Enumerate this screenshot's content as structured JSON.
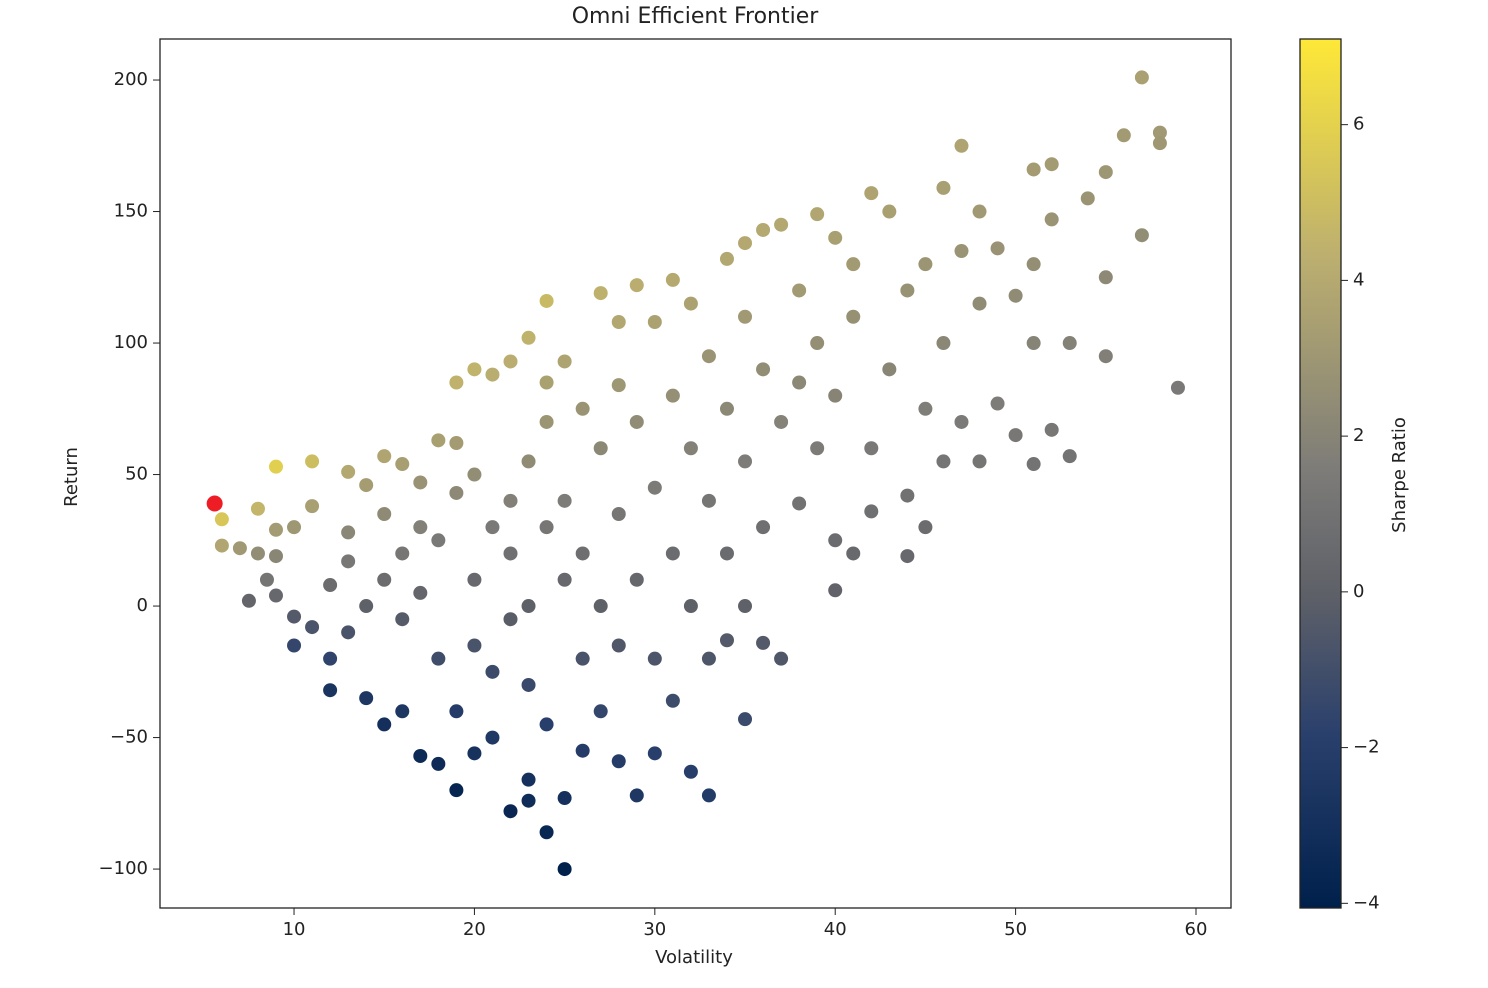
{
  "chart_data": {
    "type": "scatter",
    "title": "Omni Efficient Frontier",
    "x_label": "Volatility",
    "y_label": "Return",
    "colorbar_label": "Sharpe Ratio",
    "colormap": "cividis",
    "x": [
      6,
      6,
      7,
      8,
      9,
      11,
      11,
      9,
      10,
      8,
      9,
      7.5,
      8.5,
      9,
      10,
      10,
      11,
      12,
      12,
      12,
      13,
      13,
      13,
      13,
      14,
      14,
      14,
      15,
      15,
      15,
      15,
      16,
      16,
      16,
      16,
      17,
      17,
      17,
      17,
      18,
      18,
      18,
      18,
      19,
      19,
      19,
      19,
      19,
      20,
      20,
      20,
      20,
      20,
      21,
      21,
      21,
      21,
      22,
      22,
      22,
      22,
      22,
      23,
      23,
      23,
      23,
      23,
      23,
      24,
      24,
      24,
      24,
      24,
      24,
      25,
      25,
      25,
      25,
      25,
      26,
      26,
      26,
      26,
      27,
      27,
      27,
      27,
      28,
      28,
      28,
      28,
      28,
      29,
      29,
      29,
      29,
      30,
      30,
      30,
      30,
      31,
      31,
      31,
      31,
      32,
      32,
      32,
      32,
      33,
      33,
      33,
      33,
      34,
      34,
      34,
      34,
      35,
      35,
      35,
      35,
      35,
      36,
      36,
      36,
      36,
      37,
      37,
      37,
      38,
      38,
      38,
      39,
      39,
      39,
      40,
      40,
      40,
      40,
      41,
      41,
      41,
      42,
      42,
      42,
      43,
      43,
      44,
      44,
      44,
      45,
      45,
      45,
      46,
      46,
      46,
      47,
      47,
      47,
      48,
      48,
      48,
      49,
      49,
      50,
      50,
      51,
      51,
      51,
      51,
      52,
      52,
      52,
      53,
      53,
      54,
      55,
      55,
      55,
      56,
      57,
      57,
      58,
      58,
      59
    ],
    "y": [
      33,
      23,
      22,
      37,
      53,
      55,
      38,
      29,
      30,
      20,
      19,
      2,
      10,
      4,
      -4,
      -15,
      -8,
      8,
      -20,
      -32,
      17,
      -10,
      28,
      51,
      46,
      -35,
      0,
      57,
      -45,
      10,
      35,
      54,
      20,
      -40,
      -5,
      47,
      -57,
      30,
      5,
      63,
      -60,
      25,
      -20,
      62,
      -70,
      43,
      85,
      -40,
      90,
      50,
      -56,
      10,
      -15,
      88,
      30,
      -50,
      -25,
      93,
      -78,
      20,
      -5,
      40,
      102,
      -74,
      -66,
      55,
      0,
      -30,
      116,
      -86,
      85,
      70,
      30,
      -45,
      -100,
      -73,
      93,
      40,
      10,
      -55,
      75,
      -20,
      20,
      119,
      60,
      -40,
      0,
      -59,
      108,
      84,
      35,
      -15,
      122,
      -72,
      70,
      10,
      108,
      -56,
      45,
      -20,
      124,
      80,
      20,
      -36,
      115,
      -63,
      60,
      0,
      -72,
      95,
      40,
      -20,
      132,
      75,
      20,
      -13,
      138,
      -43,
      110,
      55,
      0,
      143,
      90,
      30,
      -14,
      145,
      70,
      -20,
      120,
      85,
      39,
      149,
      100,
      60,
      6,
      25,
      140,
      80,
      130,
      20,
      110,
      157,
      60,
      36,
      150,
      90,
      19,
      120,
      42,
      130,
      30,
      75,
      159,
      100,
      55,
      175,
      135,
      70,
      150,
      115,
      55,
      136,
      77,
      118,
      65,
      166,
      130,
      54,
      100,
      168,
      147,
      67,
      57,
      100,
      155,
      165,
      95,
      125,
      179,
      201,
      141,
      180,
      176,
      83
    ],
    "highlight": {
      "x": 5.6,
      "y": 39,
      "color": "#ee1c25"
    },
    "xlim": [
      2.57,
      61.94
    ],
    "xticks": [
      10,
      20,
      30,
      40,
      50,
      60
    ],
    "ylim": [
      -114.8,
      215.6
    ],
    "yticks": [
      {
        "value": -100,
        "label": "−100"
      },
      {
        "value": -50,
        "label": "−50"
      },
      0,
      50,
      100,
      150,
      200
    ],
    "clim": [
      -4.06,
      7.1
    ],
    "cticks": [
      {
        "value": -4,
        "label": "−4"
      },
      {
        "value": -2,
        "label": "−2"
      },
      0,
      2,
      4,
      6
    ]
  }
}
